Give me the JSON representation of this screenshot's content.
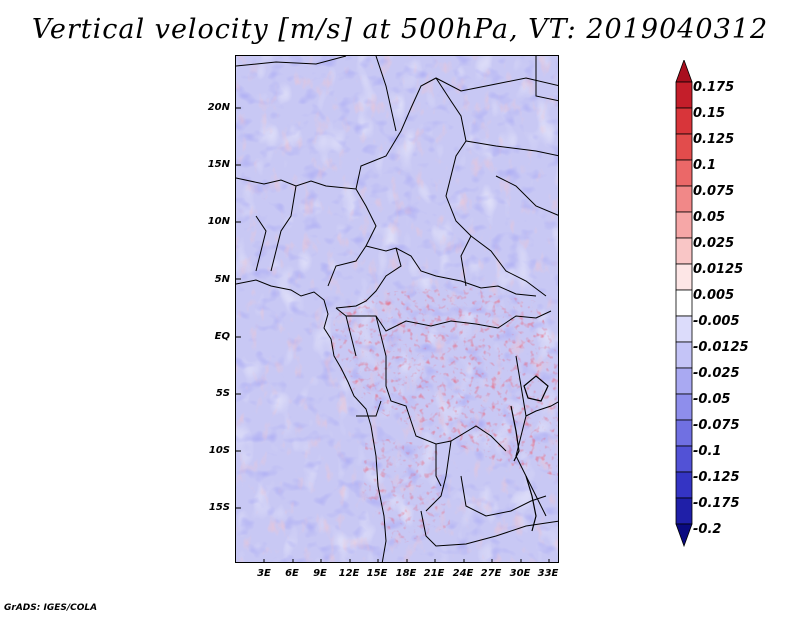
{
  "title": "Vertical velocity [m/s] at 500hPa, VT: 2019040312",
  "credit": "GrADS: IGES/COLA",
  "axes": {
    "lat_labels": [
      "20N",
      "15N",
      "10N",
      "5N",
      "EQ",
      "5S",
      "10S",
      "15S"
    ],
    "lon_labels": [
      "3E",
      "6E",
      "9E",
      "12E",
      "15E",
      "18E",
      "21E",
      "24E",
      "27E",
      "30E",
      "33E"
    ]
  },
  "colorbar": {
    "levels": [
      "0.175",
      "0.15",
      "0.125",
      "0.1",
      "0.075",
      "0.05",
      "0.025",
      "0.0125",
      "0.005",
      "-0.005",
      "-0.0125",
      "-0.025",
      "-0.05",
      "-0.075",
      "-0.1",
      "-0.125",
      "-0.175",
      "-0.2"
    ],
    "colors": [
      "#a80f1e",
      "#c41e2a",
      "#d8353a",
      "#e24c4c",
      "#eb6868",
      "#f18888",
      "#f6a7a7",
      "#f9c6c6",
      "#fde6e6",
      "#ffffff",
      "#dcdcfb",
      "#c4c4f7",
      "#a9a9f2",
      "#8e8eec",
      "#7070e2",
      "#5252d6",
      "#3434c4",
      "#1f1fa8",
      "#0a0a80"
    ]
  },
  "colors": {
    "background": "#c8c8f4",
    "border": "#000000"
  }
}
